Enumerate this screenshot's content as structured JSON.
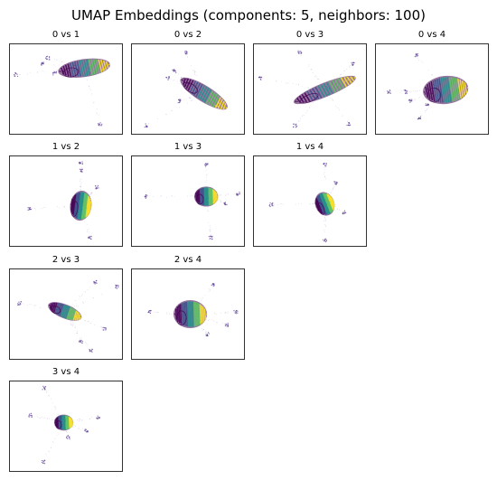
{
  "figure": {
    "suptitle": "UMAP Embeddings (components: 5, neighbors: 100)",
    "colormap": [
      "#440154",
      "#3b528b",
      "#21918c",
      "#5ec962",
      "#fde725"
    ],
    "dot_color": "#5b3f95"
  },
  "chart_data": [
    {
      "type": "scatter",
      "title": "0 vs 1",
      "xlabel": "",
      "ylabel": "",
      "grid": false,
      "main_cluster": {
        "cx": 0.66,
        "cy": 0.27,
        "rx": 0.22,
        "ry": 0.09,
        "angle": -8
      },
      "outlier_groups": [
        {
          "x": 0.06,
          "y": 0.34
        },
        {
          "x": 0.29,
          "y": 0.22
        },
        {
          "x": 0.34,
          "y": 0.16
        },
        {
          "x": 0.4,
          "y": 0.33
        },
        {
          "x": 0.8,
          "y": 0.88
        }
      ]
    },
    {
      "type": "scatter",
      "title": "0 vs 2",
      "xlabel": "",
      "ylabel": "",
      "grid": false,
      "main_cluster": {
        "cx": 0.64,
        "cy": 0.55,
        "rx": 0.23,
        "ry": 0.08,
        "angle": 32
      },
      "outlier_groups": [
        {
          "x": 0.48,
          "y": 0.1
        },
        {
          "x": 0.32,
          "y": 0.38
        },
        {
          "x": 0.38,
          "y": 0.3
        },
        {
          "x": 0.13,
          "y": 0.9
        },
        {
          "x": 0.42,
          "y": 0.63
        }
      ]
    },
    {
      "type": "scatter",
      "title": "0 vs 3",
      "xlabel": "",
      "ylabel": "",
      "grid": false,
      "main_cluster": {
        "cx": 0.63,
        "cy": 0.51,
        "rx": 0.28,
        "ry": 0.07,
        "angle": -22
      },
      "outlier_groups": [
        {
          "x": 0.06,
          "y": 0.38
        },
        {
          "x": 0.41,
          "y": 0.1
        },
        {
          "x": 0.37,
          "y": 0.9
        },
        {
          "x": 0.88,
          "y": 0.22
        },
        {
          "x": 0.84,
          "y": 0.88
        }
      ]
    },
    {
      "type": "scatter",
      "title": "0 vs 4",
      "xlabel": "",
      "ylabel": "",
      "grid": false,
      "main_cluster": {
        "cx": 0.62,
        "cy": 0.51,
        "rx": 0.19,
        "ry": 0.14,
        "angle": -6
      },
      "outlier_groups": [
        {
          "x": 0.12,
          "y": 0.53
        },
        {
          "x": 0.27,
          "y": 0.53
        },
        {
          "x": 0.36,
          "y": 0.13
        },
        {
          "x": 0.39,
          "y": 0.81
        },
        {
          "x": 0.31,
          "y": 0.63
        },
        {
          "x": 0.46,
          "y": 0.67
        }
      ]
    },
    {
      "type": "scatter",
      "title": "1 vs 2",
      "xlabel": "",
      "ylabel": "",
      "grid": false,
      "main_cluster": {
        "cx": 0.63,
        "cy": 0.55,
        "rx": 0.09,
        "ry": 0.15,
        "angle": 8
      },
      "outlier_groups": [
        {
          "x": 0.63,
          "y": 0.08
        },
        {
          "x": 0.63,
          "y": 0.16
        },
        {
          "x": 0.77,
          "y": 0.35
        },
        {
          "x": 0.18,
          "y": 0.59
        },
        {
          "x": 0.71,
          "y": 0.9
        }
      ]
    },
    {
      "type": "scatter",
      "title": "1 vs 3",
      "xlabel": "",
      "ylabel": "",
      "grid": false,
      "main_cluster": {
        "cx": 0.66,
        "cy": 0.45,
        "rx": 0.1,
        "ry": 0.1,
        "angle": 0
      },
      "outlier_groups": [
        {
          "x": 0.66,
          "y": 0.1
        },
        {
          "x": 0.94,
          "y": 0.42
        },
        {
          "x": 0.13,
          "y": 0.45
        },
        {
          "x": 0.7,
          "y": 0.9
        },
        {
          "x": 0.83,
          "y": 0.52
        }
      ]
    },
    {
      "type": "scatter",
      "title": "1 vs 4",
      "xlabel": "",
      "ylabel": "",
      "grid": false,
      "main_cluster": {
        "cx": 0.63,
        "cy": 0.53,
        "rx": 0.08,
        "ry": 0.12,
        "angle": -20
      },
      "outlier_groups": [
        {
          "x": 0.63,
          "y": 0.1
        },
        {
          "x": 0.16,
          "y": 0.54
        },
        {
          "x": 0.63,
          "y": 0.93
        },
        {
          "x": 0.73,
          "y": 0.3
        },
        {
          "x": 0.8,
          "y": 0.62
        }
      ]
    },
    {
      "type": "scatter",
      "title": "2 vs 3",
      "xlabel": "",
      "ylabel": "",
      "grid": false,
      "main_cluster": {
        "cx": 0.49,
        "cy": 0.47,
        "rx": 0.15,
        "ry": 0.07,
        "angle": 22
      },
      "outlier_groups": [
        {
          "x": 0.09,
          "y": 0.38
        },
        {
          "x": 0.76,
          "y": 0.15
        },
        {
          "x": 0.95,
          "y": 0.2
        },
        {
          "x": 0.63,
          "y": 0.8
        },
        {
          "x": 0.84,
          "y": 0.66
        },
        {
          "x": 0.72,
          "y": 0.9
        }
      ]
    },
    {
      "type": "scatter",
      "title": "2 vs 4",
      "xlabel": "",
      "ylabel": "",
      "grid": false,
      "main_cluster": {
        "cx": 0.52,
        "cy": 0.5,
        "rx": 0.14,
        "ry": 0.14,
        "angle": 0
      },
      "outlier_groups": [
        {
          "x": 0.16,
          "y": 0.48
        },
        {
          "x": 0.72,
          "y": 0.18
        },
        {
          "x": 0.92,
          "y": 0.48
        },
        {
          "x": 0.84,
          "y": 0.62
        },
        {
          "x": 0.67,
          "y": 0.72
        }
      ]
    },
    {
      "type": "scatter",
      "title": "3 vs 4",
      "xlabel": "",
      "ylabel": "",
      "grid": false,
      "main_cluster": {
        "cx": 0.48,
        "cy": 0.46,
        "rx": 0.08,
        "ry": 0.08,
        "angle": 0
      },
      "outlier_groups": [
        {
          "x": 0.31,
          "y": 0.08
        },
        {
          "x": 0.19,
          "y": 0.38
        },
        {
          "x": 0.78,
          "y": 0.4
        },
        {
          "x": 0.3,
          "y": 0.89
        },
        {
          "x": 0.68,
          "y": 0.55
        },
        {
          "x": 0.52,
          "y": 0.62
        }
      ]
    }
  ]
}
